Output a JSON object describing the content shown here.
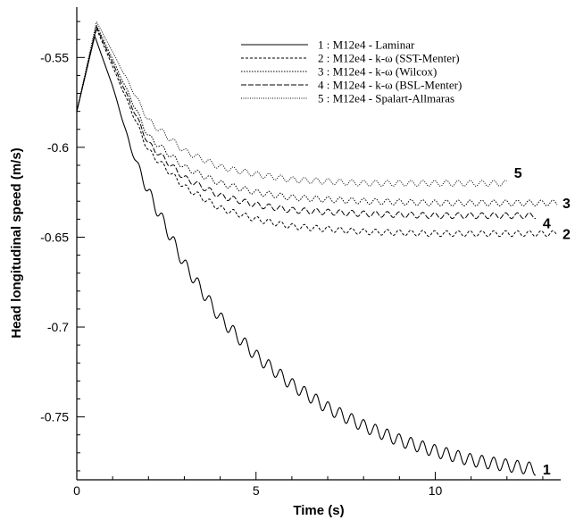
{
  "chart_data": {
    "type": "line",
    "xlabel": "Time (s)",
    "ylabel": "Head longitudinal speed (m/s)",
    "xlim": [
      0,
      13.5
    ],
    "ylim": [
      -0.785,
      -0.522
    ],
    "x_ticks": [
      0,
      5,
      10
    ],
    "x_tick_labels": [
      "0",
      "5",
      "10"
    ],
    "y_ticks": [
      -0.55,
      -0.6,
      -0.65,
      -0.7,
      -0.75
    ],
    "y_tick_labels": [
      "-0.55",
      "-0.6",
      "-0.65",
      "-0.7",
      "-0.75"
    ],
    "grid": false,
    "legend_position": "top-right",
    "oscillation_period_s": 0.33,
    "series": [
      {
        "name": "1 : M12e4 - Laminar",
        "tag": "1",
        "dash": "none",
        "x": [
          0,
          0.5,
          1.0,
          1.5,
          2,
          3,
          4,
          5,
          6,
          7,
          8,
          9,
          10,
          11,
          12,
          12.8
        ],
        "y": [
          -0.58,
          -0.538,
          -0.566,
          -0.6,
          -0.625,
          -0.665,
          -0.695,
          -0.716,
          -0.732,
          -0.745,
          -0.755,
          -0.763,
          -0.769,
          -0.774,
          -0.777,
          -0.779
        ],
        "osc_amp": [
          0,
          0,
          0,
          0.001,
          0.0035,
          0.0035,
          0.0035,
          0.0035,
          0.0035,
          0.0035,
          0.0035,
          0.0035,
          0.0035,
          0.0035,
          0.0035,
          0.0035
        ]
      },
      {
        "name": "2 : M12e4 - k-ω (SST-Menter)",
        "tag": "2",
        "dash": "3,2",
        "x": [
          0,
          0.55,
          1.0,
          2,
          3,
          4,
          5,
          6,
          8,
          10,
          12,
          13.4
        ],
        "y": [
          -0.58,
          -0.534,
          -0.555,
          -0.602,
          -0.622,
          -0.634,
          -0.64,
          -0.644,
          -0.647,
          -0.648,
          -0.648,
          -0.648
        ],
        "osc_amp": [
          0,
          0,
          0,
          0.0016,
          0.0016,
          0.0016,
          0.0016,
          0.0016,
          0.0016,
          0.0016,
          0.0016,
          0.0016
        ]
      },
      {
        "name": "3 : M12e4 - k-ω (Wilcox)",
        "tag": "3",
        "dash": "1.5,1.5",
        "x": [
          0,
          0.55,
          1.0,
          2,
          3,
          4,
          5,
          6,
          8,
          10,
          12,
          13.4
        ],
        "y": [
          -0.58,
          -0.532,
          -0.551,
          -0.594,
          -0.611,
          -0.62,
          -0.625,
          -0.628,
          -0.63,
          -0.631,
          -0.631,
          -0.631
        ],
        "osc_amp": [
          0,
          0,
          0,
          0.0016,
          0.0016,
          0.0016,
          0.0016,
          0.0016,
          0.0016,
          0.0016,
          0.0016,
          0.0016
        ]
      },
      {
        "name": "4 : M12e4 - k-ω (BSL-Menter)",
        "tag": "4",
        "dash": "6,2",
        "x": [
          0,
          0.55,
          1.0,
          2,
          3,
          4,
          5,
          6,
          8,
          10,
          12,
          12.8
        ],
        "y": [
          -0.58,
          -0.533,
          -0.553,
          -0.598,
          -0.617,
          -0.627,
          -0.632,
          -0.635,
          -0.637,
          -0.638,
          -0.638,
          -0.638
        ],
        "osc_amp": [
          0,
          0,
          0,
          0.0016,
          0.0016,
          0.0016,
          0.0016,
          0.0016,
          0.0016,
          0.0016,
          0.0016,
          0.0016
        ]
      },
      {
        "name": "5 : M12e4 - Spalart-Allmaras",
        "tag": "5",
        "dash": "1,1.5",
        "x": [
          0,
          0.55,
          1.0,
          2,
          3,
          4,
          5,
          6,
          8,
          10,
          12
        ],
        "y": [
          -0.58,
          -0.53,
          -0.547,
          -0.585,
          -0.602,
          -0.611,
          -0.615,
          -0.618,
          -0.62,
          -0.62,
          -0.62
        ],
        "osc_amp": [
          0,
          0,
          0,
          0.0016,
          0.0016,
          0.0016,
          0.0016,
          0.0016,
          0.0016,
          0.0016,
          0.0016
        ]
      }
    ]
  }
}
